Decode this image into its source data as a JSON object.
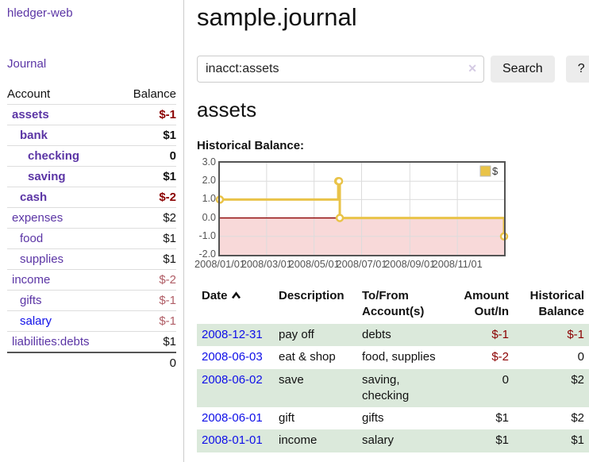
{
  "colors": {
    "purple_link": "#5b35a5",
    "blue_link": "#0f0fe8",
    "negative_strong": "#8b0000",
    "negative_soft": "#b05d66",
    "row_stripe_green": "#dbe9db",
    "chart_series_yellow": "#e9c348",
    "chart_negative_fill": "#f8d9d9",
    "chart_zero_line": "#8b0000",
    "button_gray": "#ececec"
  },
  "sidebar": {
    "brand": "hledger-web",
    "journal_label": "Journal",
    "header": {
      "account": "Account",
      "balance": "Balance"
    },
    "accounts": [
      {
        "name": "assets",
        "balance": "$-1",
        "level": 1,
        "bold": true,
        "balance_class": "neg-strong",
        "link": "purple"
      },
      {
        "name": "bank",
        "balance": "$1",
        "level": 2,
        "bold": true,
        "balance_class": "",
        "link": "purple"
      },
      {
        "name": "checking",
        "balance": "0",
        "level": 3,
        "bold": true,
        "balance_class": "",
        "link": "purple"
      },
      {
        "name": "saving",
        "balance": "$1",
        "level": 3,
        "bold": true,
        "balance_class": "",
        "link": "purple"
      },
      {
        "name": "cash",
        "balance": "$-2",
        "level": 2,
        "bold": true,
        "balance_class": "neg-strong",
        "link": "purple"
      },
      {
        "name": "expenses",
        "balance": "$2",
        "level": 1,
        "bold": false,
        "balance_class": "",
        "link": "purple"
      },
      {
        "name": "food",
        "balance": "$1",
        "level": 2,
        "bold": false,
        "balance_class": "",
        "link": "purple"
      },
      {
        "name": "supplies",
        "balance": "$1",
        "level": 2,
        "bold": false,
        "balance_class": "",
        "link": "purple"
      },
      {
        "name": "income",
        "balance": "$-2",
        "level": 1,
        "bold": false,
        "balance_class": "neg-soft",
        "link": "purple"
      },
      {
        "name": "gifts",
        "balance": "$-1",
        "level": 2,
        "bold": false,
        "balance_class": "neg-soft",
        "link": "purple"
      },
      {
        "name": "salary",
        "balance": "$-1",
        "level": 2,
        "bold": false,
        "balance_class": "neg-soft",
        "link": "blue"
      },
      {
        "name": "liabilities:debts",
        "balance": "$1",
        "level": 1,
        "bold": false,
        "balance_class": "",
        "link": "purple"
      }
    ],
    "total": "0"
  },
  "main": {
    "title": "sample.journal",
    "search": {
      "query": "inacct:assets",
      "button_label": "Search",
      "help_label": "?",
      "clear_icon": "✕"
    },
    "account_heading": "assets",
    "chart_label": "Historical Balance:",
    "register": {
      "columns": {
        "date": "Date",
        "description": "Description",
        "tofrom1": "To/From",
        "tofrom2": "Account(s)",
        "amount1": "Amount",
        "amount2": "Out/In",
        "hist1": "Historical",
        "hist2": "Balance"
      },
      "rows": [
        {
          "date": "2008-12-31",
          "description": "pay off",
          "accounts": "debts",
          "amount": "$-1",
          "balance": "$-1"
        },
        {
          "date": "2008-06-03",
          "description": "eat & shop",
          "accounts": "food, supplies",
          "amount": "$-2",
          "balance": "0"
        },
        {
          "date": "2008-06-02",
          "description": "save",
          "accounts": "saving, checking",
          "amount": "0",
          "balance": "$2"
        },
        {
          "date": "2008-06-01",
          "description": "gift",
          "accounts": "gifts",
          "amount": "$1",
          "balance": "$2"
        },
        {
          "date": "2008-01-01",
          "description": "income",
          "accounts": "salary",
          "amount": "$1",
          "balance": "$1"
        }
      ]
    }
  },
  "chart_data": {
    "type": "line",
    "step": true,
    "title": "Historical Balance:",
    "series": [
      {
        "name": "$",
        "color": "#e9c348",
        "points": [
          [
            "2008-01-01",
            1
          ],
          [
            "2008-06-01",
            2
          ],
          [
            "2008-06-02",
            2
          ],
          [
            "2008-06-03",
            0
          ],
          [
            "2008-12-31",
            -1
          ]
        ]
      }
    ],
    "xlim": [
      "2008-01-01",
      "2008-12-31"
    ],
    "ylim": [
      -2,
      3
    ],
    "x_ticks": [
      "2008/01/01",
      "2008/03/01",
      "2008/05/01",
      "2008/07/01",
      "2008/09/01",
      "2008/11/01"
    ],
    "y_ticks": [
      3.0,
      2.0,
      1.0,
      0.0,
      -1.0,
      -2.0
    ],
    "grid": true,
    "legend": "$",
    "legend_position": "top-right",
    "negative_fill": "#f8d9d9",
    "zero_line_color": "#8b0000"
  }
}
